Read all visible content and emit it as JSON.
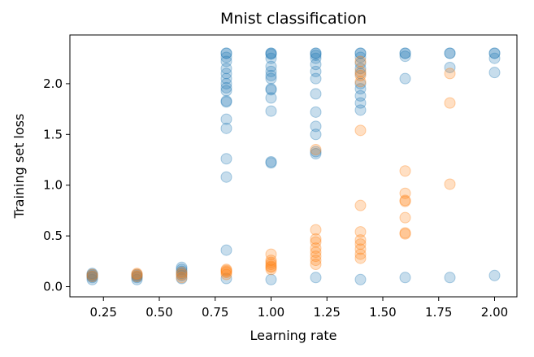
{
  "chart_data": {
    "type": "scatter",
    "title": "Mnist classification",
    "xlabel": "Learning rate",
    "ylabel": "Training set loss",
    "xlim": [
      0.1,
      2.1
    ],
    "ylim": [
      -0.1,
      2.48
    ],
    "xticks": [
      0.25,
      0.5,
      0.75,
      1.0,
      1.25,
      1.5,
      1.75,
      2.0
    ],
    "xtick_labels": [
      "0.25",
      "0.50",
      "0.75",
      "1.00",
      "1.25",
      "1.50",
      "1.75",
      "2.00"
    ],
    "yticks": [
      0.0,
      0.5,
      1.0,
      1.5,
      2.0
    ],
    "ytick_labels": [
      "0.0",
      "0.5",
      "1.0",
      "1.5",
      "2.0"
    ],
    "grid": false,
    "legend": "none",
    "series": [
      {
        "color": "#1f77b4",
        "opacity": 0.25,
        "points": [
          [
            0.2,
            0.07
          ],
          [
            0.2,
            0.09
          ],
          [
            0.2,
            0.1
          ],
          [
            0.2,
            0.11
          ],
          [
            0.2,
            0.12
          ],
          [
            0.2,
            0.13
          ],
          [
            0.4,
            0.07
          ],
          [
            0.4,
            0.09
          ],
          [
            0.4,
            0.1
          ],
          [
            0.4,
            0.11
          ],
          [
            0.4,
            0.12
          ],
          [
            0.6,
            0.08
          ],
          [
            0.6,
            0.11
          ],
          [
            0.6,
            0.13
          ],
          [
            0.6,
            0.15
          ],
          [
            0.6,
            0.17
          ],
          [
            0.6,
            0.19
          ],
          [
            0.8,
            0.08
          ],
          [
            0.8,
            0.36
          ],
          [
            0.8,
            1.08
          ],
          [
            0.8,
            1.26
          ],
          [
            0.8,
            1.56
          ],
          [
            0.8,
            1.65
          ],
          [
            0.8,
            1.82
          ],
          [
            0.8,
            1.83
          ],
          [
            0.8,
            1.93
          ],
          [
            0.8,
            1.96
          ],
          [
            0.8,
            2.0
          ],
          [
            0.8,
            2.05
          ],
          [
            0.8,
            2.1
          ],
          [
            0.8,
            2.15
          ],
          [
            0.8,
            2.22
          ],
          [
            0.8,
            2.26
          ],
          [
            0.8,
            2.3
          ],
          [
            0.8,
            2.3
          ],
          [
            1.0,
            0.07
          ],
          [
            1.0,
            1.22
          ],
          [
            1.0,
            1.23
          ],
          [
            1.0,
            1.73
          ],
          [
            1.0,
            1.86
          ],
          [
            1.0,
            1.94
          ],
          [
            1.0,
            1.95
          ],
          [
            1.0,
            2.05
          ],
          [
            1.0,
            2.08
          ],
          [
            1.0,
            2.12
          ],
          [
            1.0,
            2.17
          ],
          [
            1.0,
            2.25
          ],
          [
            1.0,
            2.29
          ],
          [
            1.0,
            2.3
          ],
          [
            1.0,
            2.3
          ],
          [
            1.2,
            0.09
          ],
          [
            1.2,
            1.31
          ],
          [
            1.2,
            1.33
          ],
          [
            1.2,
            1.5
          ],
          [
            1.2,
            1.58
          ],
          [
            1.2,
            1.72
          ],
          [
            1.2,
            1.9
          ],
          [
            1.2,
            2.05
          ],
          [
            1.2,
            2.12
          ],
          [
            1.2,
            2.19
          ],
          [
            1.2,
            2.25
          ],
          [
            1.2,
            2.28
          ],
          [
            1.2,
            2.3
          ],
          [
            1.2,
            2.3
          ],
          [
            1.4,
            0.07
          ],
          [
            1.4,
            1.74
          ],
          [
            1.4,
            1.81
          ],
          [
            1.4,
            1.88
          ],
          [
            1.4,
            1.95
          ],
          [
            1.4,
            2.0
          ],
          [
            1.4,
            2.1
          ],
          [
            1.4,
            2.15
          ],
          [
            1.4,
            2.2
          ],
          [
            1.4,
            2.26
          ],
          [
            1.4,
            2.3
          ],
          [
            1.4,
            2.3
          ],
          [
            1.6,
            0.09
          ],
          [
            1.6,
            2.05
          ],
          [
            1.6,
            2.27
          ],
          [
            1.6,
            2.3
          ],
          [
            1.6,
            2.3
          ],
          [
            1.8,
            0.09
          ],
          [
            1.8,
            2.16
          ],
          [
            1.8,
            2.3
          ],
          [
            1.8,
            2.3
          ],
          [
            2.0,
            0.11
          ],
          [
            2.0,
            2.11
          ],
          [
            2.0,
            2.25
          ],
          [
            2.0,
            2.3
          ],
          [
            2.0,
            2.3
          ]
        ]
      },
      {
        "color": "#ff7f0e",
        "opacity": 0.25,
        "points": [
          [
            0.2,
            0.1
          ],
          [
            0.2,
            0.12
          ],
          [
            0.4,
            0.1
          ],
          [
            0.4,
            0.12
          ],
          [
            0.4,
            0.13
          ],
          [
            0.6,
            0.09
          ],
          [
            0.6,
            0.12
          ],
          [
            0.6,
            0.14
          ],
          [
            0.8,
            0.12
          ],
          [
            0.8,
            0.14
          ],
          [
            0.8,
            0.15
          ],
          [
            0.8,
            0.16
          ],
          [
            0.8,
            0.17
          ],
          [
            1.0,
            0.17
          ],
          [
            1.0,
            0.19
          ],
          [
            1.0,
            0.2
          ],
          [
            1.0,
            0.22
          ],
          [
            1.0,
            0.24
          ],
          [
            1.0,
            0.26
          ],
          [
            1.0,
            0.32
          ],
          [
            1.2,
            0.22
          ],
          [
            1.2,
            0.26
          ],
          [
            1.2,
            0.3
          ],
          [
            1.2,
            0.34
          ],
          [
            1.2,
            0.38
          ],
          [
            1.2,
            0.44
          ],
          [
            1.2,
            0.47
          ],
          [
            1.2,
            0.56
          ],
          [
            1.2,
            1.35
          ],
          [
            1.4,
            0.28
          ],
          [
            1.4,
            0.32
          ],
          [
            1.4,
            0.37
          ],
          [
            1.4,
            0.42
          ],
          [
            1.4,
            0.46
          ],
          [
            1.4,
            0.54
          ],
          [
            1.4,
            0.8
          ],
          [
            1.4,
            1.54
          ],
          [
            1.4,
            2.02
          ],
          [
            1.4,
            2.08
          ],
          [
            1.4,
            2.12
          ],
          [
            1.4,
            2.22
          ],
          [
            1.6,
            0.52
          ],
          [
            1.6,
            0.53
          ],
          [
            1.6,
            0.68
          ],
          [
            1.6,
            0.84
          ],
          [
            1.6,
            0.85
          ],
          [
            1.6,
            0.92
          ],
          [
            1.6,
            1.14
          ],
          [
            1.8,
            1.01
          ],
          [
            1.8,
            1.81
          ],
          [
            1.8,
            2.1
          ]
        ]
      }
    ]
  }
}
